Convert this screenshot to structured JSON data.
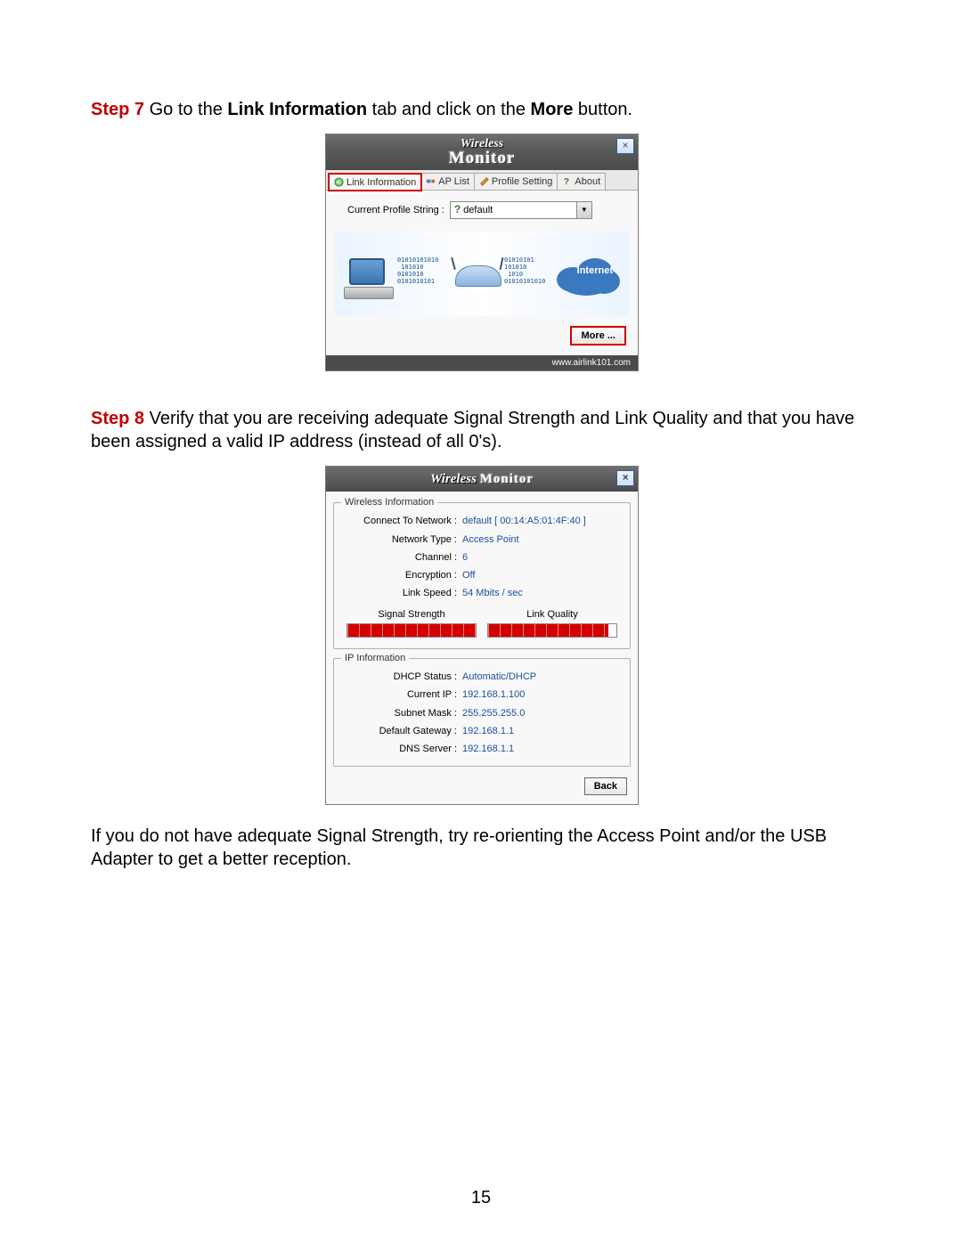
{
  "step7": {
    "label": "Step 7",
    "text_before": " Go to the ",
    "bold1": "Link Information",
    "text_mid": " tab and click on the ",
    "bold2": "More",
    "text_after": " button."
  },
  "step8": {
    "label": "Step 8",
    "text": " Verify that you are receiving adequate Signal Strength and Link Quality and that you have been assigned a valid IP address (instead of all 0's)."
  },
  "footer_note": "If you do not have adequate Signal Strength, try re-orienting the Access Point and/or the USB Adapter to get a better reception.",
  "page_number": "15",
  "win1": {
    "title_top": "Wireless",
    "title_bottom": "Monitor",
    "tabs": {
      "link_info": "Link Information",
      "ap_list": "AP List",
      "profile_setting": "Profile Setting",
      "about": "About"
    },
    "profile_label": "Current Profile String :",
    "profile_value": "default",
    "internet_label": "Internet",
    "more_label": "More ...",
    "footer_url": "www.airlink101.com",
    "hl_color": "#d00000"
  },
  "win2": {
    "title_top": "Wireless",
    "title_bottom": "Monitor",
    "group1_legend": "Wireless Information",
    "rows1": {
      "connect_k": "Connect To Network :",
      "connect_v": "default [ 00:14:A5:01:4F:40 ]",
      "type_k": "Network Type :",
      "type_v": "Access Point",
      "channel_k": "Channel :",
      "channel_v": "6",
      "enc_k": "Encryption :",
      "enc_v": "Off",
      "speed_k": "Link Speed :",
      "speed_v": "54 Mbits / sec"
    },
    "signal_label": "Signal Strength",
    "quality_label": "Link Quality",
    "signal_pct": 100,
    "quality_pct": 94,
    "bar_color": "#d40000",
    "group2_legend": "IP Information",
    "rows2": {
      "dhcp_k": "DHCP Status :",
      "dhcp_v": "Automatic/DHCP",
      "ip_k": "Current IP :",
      "ip_v": "192.168.1.100",
      "mask_k": "Subnet Mask :",
      "mask_v": "255.255.255.0",
      "gw_k": "Default Gateway :",
      "gw_v": "192.168.1.1",
      "dns_k": "DNS Server :",
      "dns_v": "192.168.1.1"
    },
    "back_label": "Back",
    "value_color": "#1e4fa0"
  }
}
